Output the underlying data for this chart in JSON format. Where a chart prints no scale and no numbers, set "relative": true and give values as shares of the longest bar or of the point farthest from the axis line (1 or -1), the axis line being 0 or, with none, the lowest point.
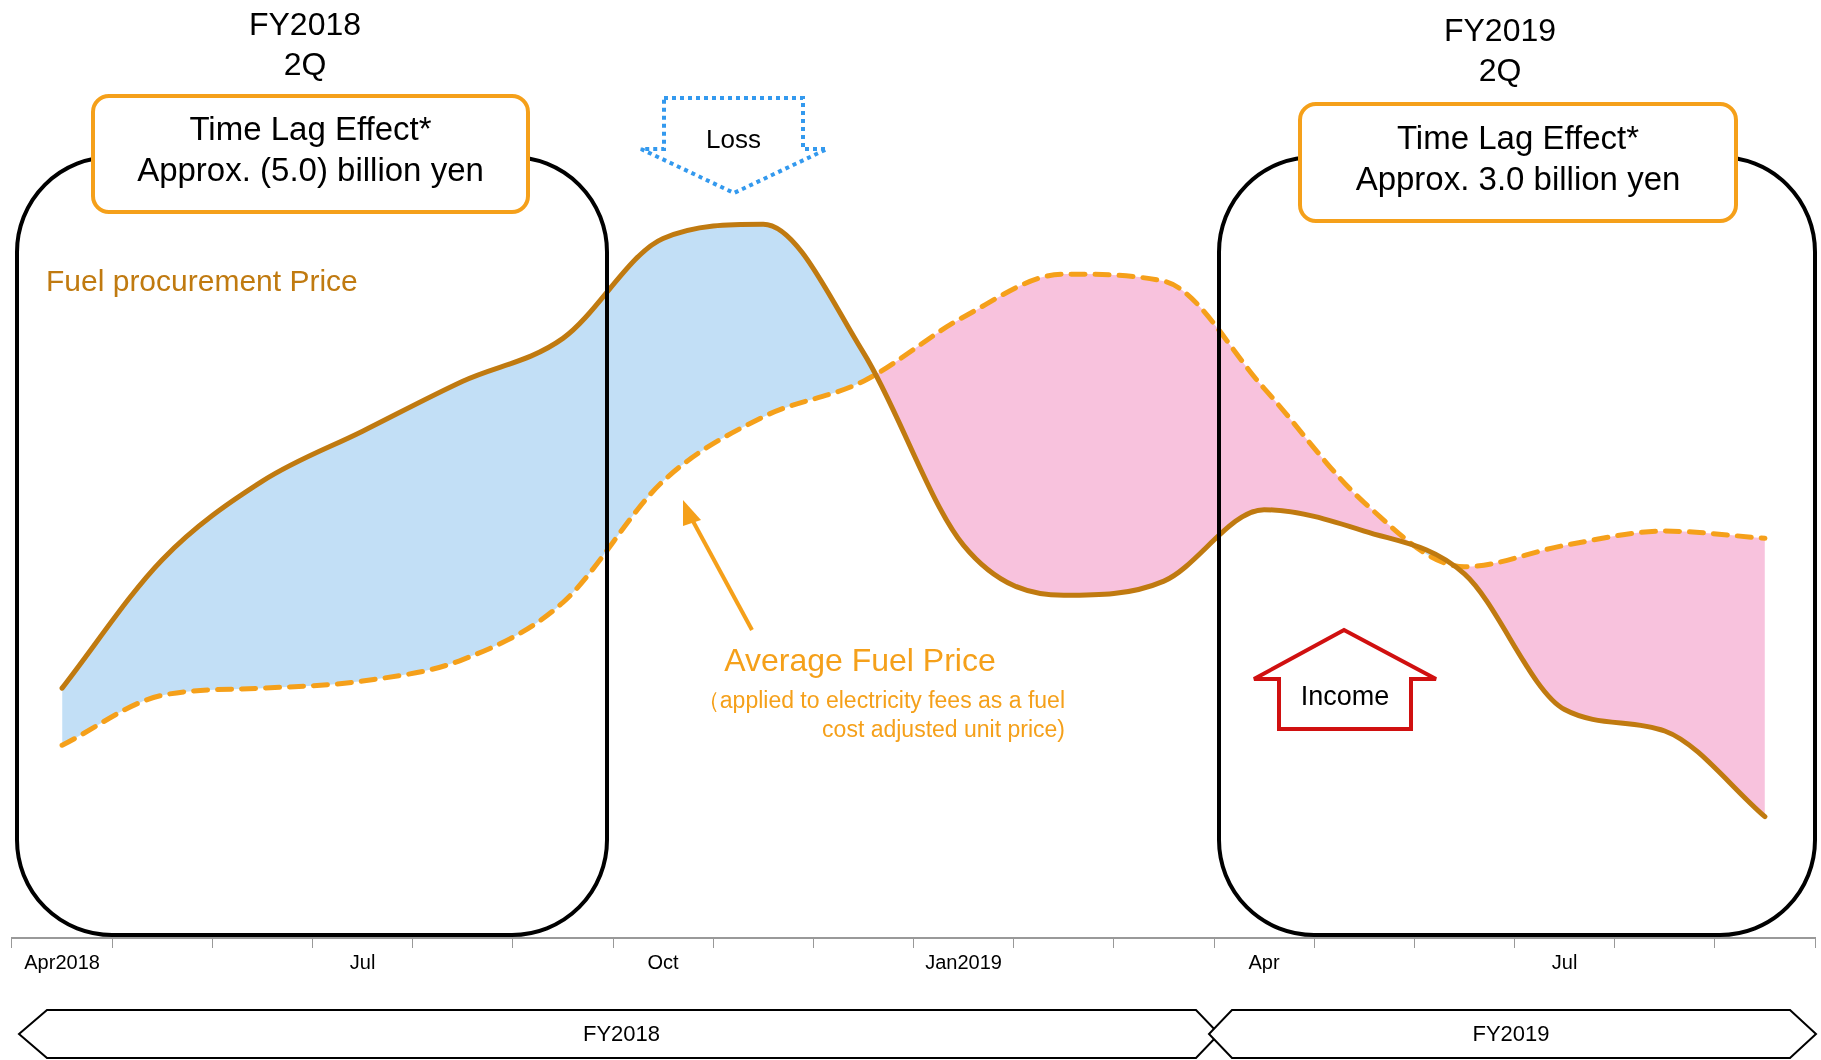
{
  "chart_data": {
    "type": "line",
    "relative": true,
    "marker": "none",
    "categories": [
      "Apr2018",
      null,
      null,
      "Jul",
      null,
      null,
      "Oct",
      null,
      null,
      "Jan2019",
      null,
      null,
      "Apr",
      null,
      null,
      "Jul",
      null,
      null
    ],
    "series": [
      {
        "name": "Fuel procurement Price",
        "color": "#c07a10",
        "line_style": "solid",
        "values": [
          0.35,
          0.53,
          0.64,
          0.71,
          0.78,
          0.84,
          0.98,
          1,
          0.82,
          0.55,
          0.48,
          0.5,
          0.6,
          0.57,
          0.51,
          0.32,
          0.29,
          0.17
        ]
      },
      {
        "name": "Average Fuel Price",
        "color": "#f5a01a",
        "line_style": "dashed",
        "values": [
          0.27,
          0.34,
          0.35,
          0.36,
          0.39,
          0.47,
          0.64,
          0.73,
          0.78,
          0.87,
          0.93,
          0.92,
          0.77,
          0.61,
          0.52,
          0.55,
          0.57,
          0.56
        ]
      }
    ],
    "annotations": [
      "FY2018\n2Q",
      "Time Lag Effect*\nApprox. (5.0) billion yen",
      "FY2019\n2Q",
      "Time Lag Effect*\nApprox. 3.0 billion yen",
      "Loss",
      "Income",
      "（applied to electricity fees as a fuel cost adjusted unit price)",
      "FY2018",
      "FY2019"
    ]
  }
}
